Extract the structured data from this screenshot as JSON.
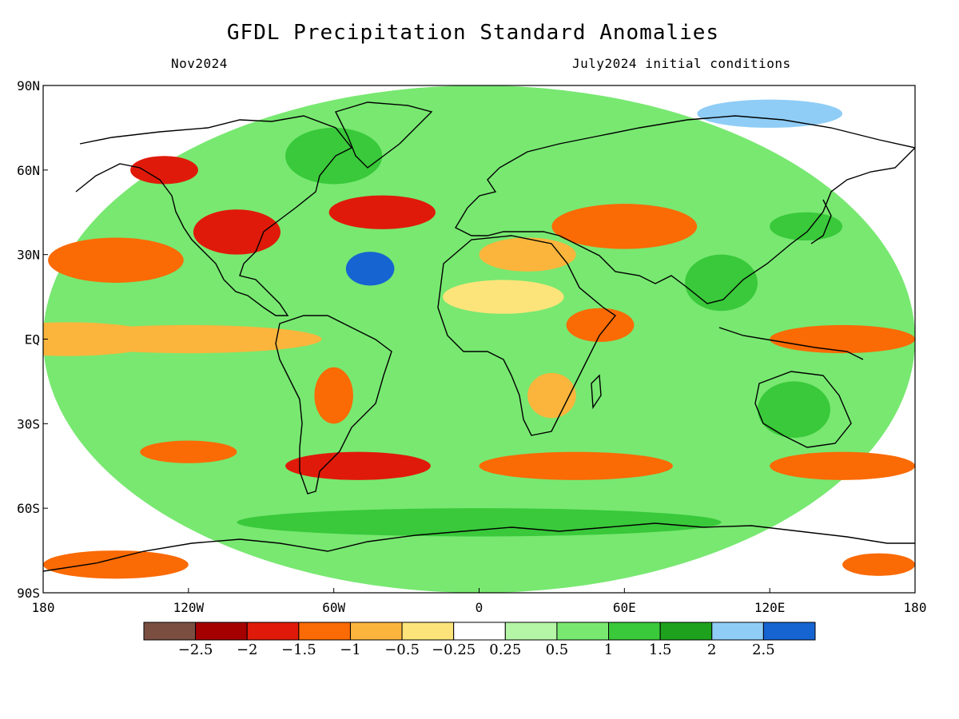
{
  "header": {
    "title": "GFDL Precipitation Standard Anomalies",
    "subtitle_left": "Nov2024",
    "subtitle_right": "July2024 initial conditions"
  },
  "axes": {
    "lon_ticks": [
      {
        "value": -180,
        "label": "180"
      },
      {
        "value": -120,
        "label": "120W"
      },
      {
        "value": -60,
        "label": "60W"
      },
      {
        "value": 0,
        "label": "0"
      },
      {
        "value": 60,
        "label": "60E"
      },
      {
        "value": 120,
        "label": "120E"
      },
      {
        "value": 180,
        "label": "180"
      }
    ],
    "lat_ticks": [
      {
        "value": 90,
        "label": "90N"
      },
      {
        "value": 60,
        "label": "60N"
      },
      {
        "value": 30,
        "label": "30N"
      },
      {
        "value": 0,
        "label": "EQ"
      },
      {
        "value": -30,
        "label": "30S"
      },
      {
        "value": -60,
        "label": "60S"
      },
      {
        "value": -90,
        "label": "90S"
      }
    ]
  },
  "colorbar": {
    "colors": [
      "#7a4f42",
      "#a50000",
      "#e01a0a",
      "#fa6a05",
      "#fbb53c",
      "#fde47a",
      "#ffffff",
      "#b4f5a6",
      "#78e871",
      "#39c93a",
      "#1ea21e",
      "#8fcdf6",
      "#1664d2"
    ],
    "labels": [
      "−2.5",
      "−2",
      "−1.5",
      "−1",
      "−0.5",
      "−0.25",
      "0.25",
      "0.5",
      "1",
      "1.5",
      "2",
      "2.5"
    ]
  },
  "map": {
    "domain": {
      "lon": [
        -180,
        180
      ],
      "lat": [
        -90,
        90
      ]
    },
    "regions": [
      {
        "lon": 0,
        "lat": 0,
        "rx": 180,
        "ry": 90,
        "level": 8
      },
      {
        "lon": -170,
        "lat": 0,
        "rx": 40,
        "ry": 6,
        "level": 4
      },
      {
        "lon": -120,
        "lat": 0,
        "rx": 55,
        "ry": 5,
        "level": 4
      },
      {
        "lon": -150,
        "lat": 28,
        "rx": 28,
        "ry": 8,
        "level": 3
      },
      {
        "lon": -100,
        "lat": 38,
        "rx": 18,
        "ry": 8,
        "level": 2
      },
      {
        "lon": -40,
        "lat": 45,
        "rx": 22,
        "ry": 6,
        "level": 2
      },
      {
        "lon": 60,
        "lat": 40,
        "rx": 30,
        "ry": 8,
        "level": 3
      },
      {
        "lon": 20,
        "lat": 30,
        "rx": 20,
        "ry": 6,
        "level": 4
      },
      {
        "lon": 10,
        "lat": 15,
        "rx": 25,
        "ry": 6,
        "level": 5
      },
      {
        "lon": 50,
        "lat": 5,
        "rx": 14,
        "ry": 6,
        "level": 3
      },
      {
        "lon": 150,
        "lat": 0,
        "rx": 30,
        "ry": 5,
        "level": 3
      },
      {
        "lon": -45,
        "lat": 25,
        "rx": 10,
        "ry": 6,
        "level": 12
      },
      {
        "lon": -130,
        "lat": 60,
        "rx": 14,
        "ry": 5,
        "level": 2
      },
      {
        "lon": 120,
        "lat": 80,
        "rx": 30,
        "ry": 5,
        "level": 11
      },
      {
        "lon": 135,
        "lat": 40,
        "rx": 15,
        "ry": 5,
        "level": 9
      },
      {
        "lon": 100,
        "lat": 20,
        "rx": 15,
        "ry": 10,
        "level": 9
      },
      {
        "lon": -50,
        "lat": -45,
        "rx": 30,
        "ry": 5,
        "level": 2
      },
      {
        "lon": 40,
        "lat": -45,
        "rx": 40,
        "ry": 5,
        "level": 3
      },
      {
        "lon": 150,
        "lat": -45,
        "rx": 30,
        "ry": 5,
        "level": 3
      },
      {
        "lon": -120,
        "lat": -40,
        "rx": 20,
        "ry": 4,
        "level": 3
      },
      {
        "lon": -60,
        "lat": -20,
        "rx": 8,
        "ry": 10,
        "level": 3
      },
      {
        "lon": 30,
        "lat": -20,
        "rx": 10,
        "ry": 8,
        "level": 4
      },
      {
        "lon": 130,
        "lat": -25,
        "rx": 15,
        "ry": 10,
        "level": 9
      },
      {
        "lon": -150,
        "lat": -80,
        "rx": 30,
        "ry": 5,
        "level": 3
      },
      {
        "lon": 165,
        "lat": -80,
        "rx": 15,
        "ry": 4,
        "level": 3
      },
      {
        "lon": 0,
        "lat": -65,
        "rx": 100,
        "ry": 5,
        "level": 9
      },
      {
        "lon": -60,
        "lat": 65,
        "rx": 20,
        "ry": 10,
        "level": 9
      }
    ]
  }
}
